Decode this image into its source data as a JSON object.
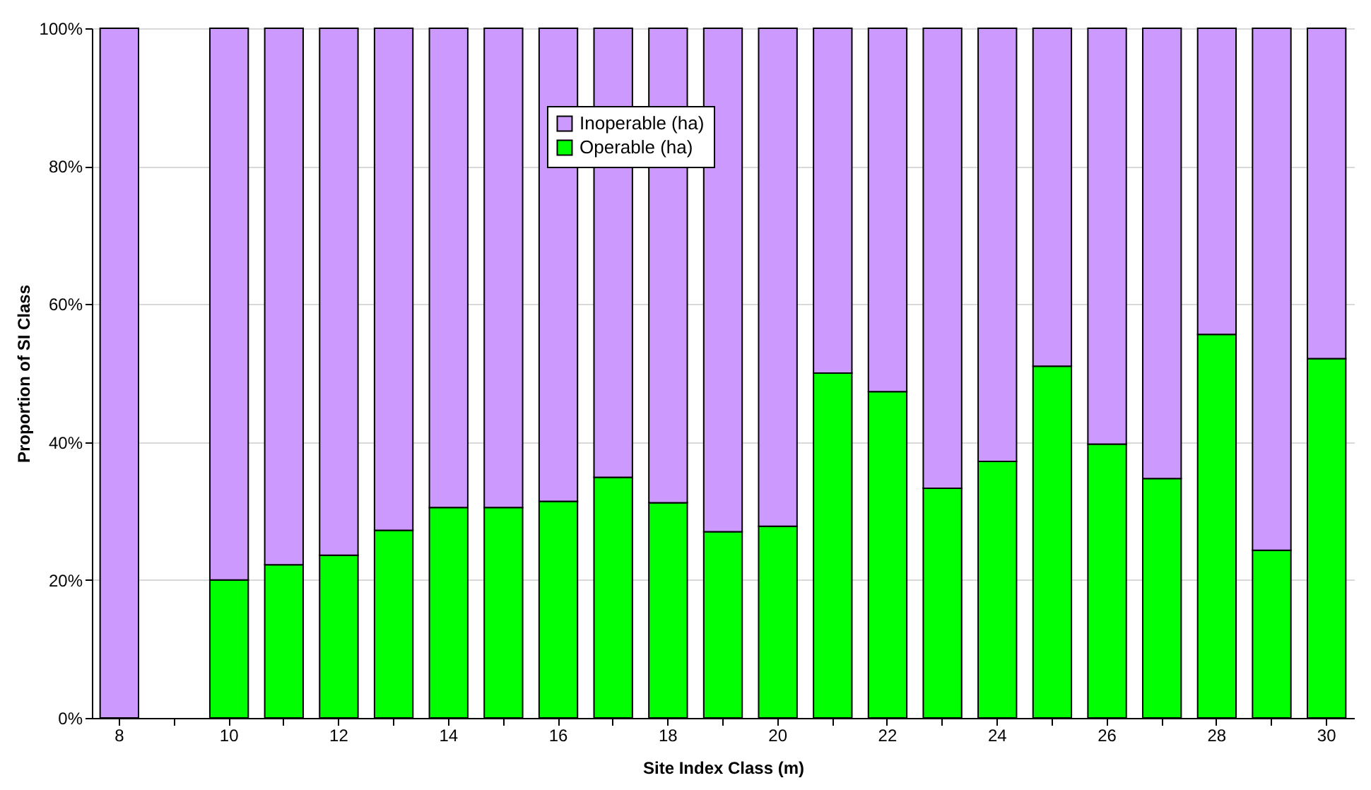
{
  "chart_data": {
    "type": "bar",
    "stacked": true,
    "xlabel": "Site Index Class (m)",
    "ylabel": "Proportion of SI Class",
    "categories": [
      "8",
      null,
      "10",
      null,
      "12",
      null,
      "14",
      null,
      "16",
      null,
      "18",
      null,
      "20",
      null,
      "22",
      null,
      "24",
      null,
      "26",
      null,
      "28",
      null,
      "30"
    ],
    "series": [
      {
        "name": "Operable (ha)",
        "color": "#00ff00",
        "values": [
          0,
          null,
          20,
          22.2,
          23.6,
          27.2,
          30.5,
          30.5,
          31.4,
          34.9,
          31.2,
          27,
          27.8,
          50,
          47.3,
          33.3,
          37.2,
          51,
          39.7,
          34.7,
          55.6,
          24.3,
          52.1
        ]
      },
      {
        "name": "Inoperable (ha)",
        "color": "#cc99ff",
        "values": [
          100,
          null,
          80,
          77.8,
          76.4,
          72.8,
          69.5,
          69.5,
          68.6,
          65.1,
          68.8,
          73,
          72.2,
          50,
          52.7,
          66.7,
          62.8,
          49,
          60.3,
          65.3,
          44.4,
          75.7,
          47.9
        ]
      }
    ],
    "ylim": [
      0,
      100
    ],
    "yticks": [
      {
        "value": 0,
        "label": "0%"
      },
      {
        "value": 20,
        "label": "20%"
      },
      {
        "value": 40,
        "label": "40%"
      },
      {
        "value": 60,
        "label": "60%"
      },
      {
        "value": 80,
        "label": "80%"
      },
      {
        "value": 100,
        "label": "100%"
      }
    ],
    "grid": "y",
    "legend": "top"
  }
}
